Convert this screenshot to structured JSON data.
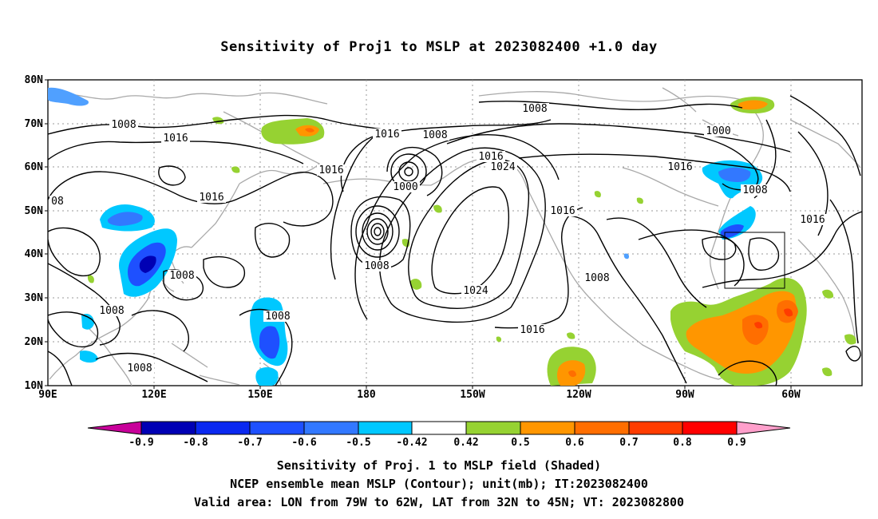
{
  "title": "Sensitivity of Proj1 to MSLP at 2023082400 +1.0 day",
  "map": {
    "lat_labels": [
      "80N",
      "70N",
      "60N",
      "50N",
      "40N",
      "30N",
      "20N",
      "10N"
    ],
    "lon_labels": [
      "90E",
      "120E",
      "150E",
      "180",
      "150W",
      "120W",
      "90W",
      "60W"
    ],
    "contour_labels": [
      {
        "text": "1008"
      },
      {
        "text": "1016"
      },
      {
        "text": "1016"
      },
      {
        "text": "1008"
      },
      {
        "text": "1016"
      },
      {
        "text": "1008"
      },
      {
        "text": "1016"
      },
      {
        "text": "1024"
      },
      {
        "text": "1000"
      },
      {
        "text": "1016"
      },
      {
        "text": "1008"
      },
      {
        "text": "1024"
      },
      {
        "text": "1008"
      },
      {
        "text": "1016"
      },
      {
        "text": "1008"
      },
      {
        "text": "1008"
      },
      {
        "text": "1008"
      },
      {
        "text": "1000"
      },
      {
        "text": "1016"
      },
      {
        "text": "1008"
      },
      {
        "text": "1016"
      },
      {
        "text": "1016"
      },
      {
        "text": "08"
      },
      {
        "text": "1008"
      }
    ],
    "colors": {
      "neg_09": "#0000b4",
      "neg_08": "#0a28f0",
      "neg_07": "#1e50ff",
      "neg_06": "#3278ff",
      "neg_05": "#50a0ff",
      "neg_042": "#00c8ff",
      "neutral": "#ffffff",
      "pos_042": "#96d232",
      "pos_05": "#ff9600",
      "pos_06": "#ff6e00",
      "pos_07": "#ff3c00",
      "pos_08": "#ff0000",
      "end_neg": "#c8009a",
      "end_pos": "#ff9fcb",
      "coast": "#a9a9a9"
    }
  },
  "colorbar": {
    "labels": [
      "-0.9",
      "-0.8",
      "-0.7",
      "-0.6",
      "-0.5",
      "-0.42",
      "0.42",
      "0.5",
      "0.6",
      "0.7",
      "0.8",
      "0.9"
    ]
  },
  "captions": {
    "line1": "Sensitivity of Proj. 1 to MSLP field (Shaded)",
    "line2": "NCEP ensemble mean MSLP (Contour); unit(mb); IT:2023082400",
    "line3": "Valid area: LON from 79W to 62W, LAT from 32N to 45N; VT: 2023082800"
  }
}
